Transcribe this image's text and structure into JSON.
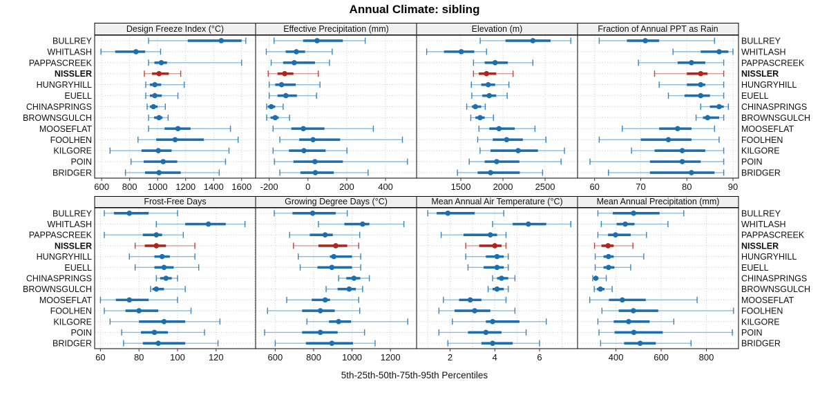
{
  "title": "Annual Climate: sibling",
  "caption": "5th-25th-50th-75th-95th Percentiles",
  "highlight_site": "NISSLER",
  "colors": {
    "blue": "#1b6fae",
    "blue_light": "#8cbcdc",
    "red": "#b2241c",
    "red_light": "#dc9a92",
    "grid": "#c9c9c9",
    "strip_bg": "#f0f0f0",
    "border": "#000000",
    "tick": "#333333"
  },
  "sites": [
    "BULLREY",
    "WHITLASH",
    "PAPPASCREEK",
    "NISSLER",
    "HUNGRYHILL",
    "EUELL",
    "CHINASPRINGS",
    "BROWNSGULCH",
    "MOOSEFLAT",
    "FOOLHEN",
    "KILGORE",
    "POIN",
    "BRIDGER"
  ],
  "percentiles": [
    "5th",
    "25th",
    "50th",
    "75th",
    "95th"
  ],
  "chart_data": [
    {
      "type": "dotplot-percentiles",
      "title": "Design Freeze Index (°C)",
      "xlim": [
        550,
        1700
      ],
      "ticks": [
        600,
        800,
        1000,
        1200,
        1400,
        1600
      ],
      "grid_ticks": [
        600,
        800,
        1000,
        1200,
        1400,
        1600
      ],
      "values": [
        [
          935,
          1215,
          1455,
          1600,
          1630
        ],
        [
          595,
          697,
          845,
          911,
          1021
        ],
        [
          935,
          977,
          1026,
          1067,
          1600
        ],
        [
          905,
          960,
          1010,
          1080,
          1165
        ],
        [
          915,
          945,
          980,
          1025,
          1190
        ],
        [
          915,
          945,
          980,
          1030,
          1145
        ],
        [
          925,
          945,
          970,
          1000,
          1055
        ],
        [
          935,
          975,
          1010,
          1035,
          1075
        ],
        [
          935,
          1050,
          1145,
          1235,
          1520
        ],
        [
          860,
          990,
          1125,
          1330,
          1575
        ],
        [
          660,
          885,
          1005,
          1100,
          1510
        ],
        [
          810,
          900,
          1040,
          1140,
          1485
        ],
        [
          770,
          910,
          1010,
          1165,
          1440
        ]
      ]
    },
    {
      "type": "dotplot-percentiles",
      "title": "Effective Precipitation (mm)",
      "xlim": [
        -270,
        560
      ],
      "ticks": [
        -200,
        0,
        200,
        400
      ],
      "grid_ticks": [
        -200,
        0,
        200,
        400
      ],
      "values": [
        [
          -175,
          -25,
          47,
          180,
          295
        ],
        [
          -215,
          -115,
          -60,
          -15,
          125
        ],
        [
          -190,
          -128,
          -71,
          36,
          111
        ],
        [
          -205,
          -157,
          -120,
          -75,
          53
        ],
        [
          -200,
          -169,
          -136,
          -63,
          62
        ],
        [
          -200,
          -157,
          -114,
          -57,
          44
        ],
        [
          -213,
          -207,
          -189,
          -169,
          -128
        ],
        [
          -213,
          -193,
          -169,
          -151,
          -95
        ],
        [
          -180,
          -86,
          -24,
          85,
          337
        ],
        [
          -145,
          -45,
          26,
          166,
          487
        ],
        [
          -180,
          -98,
          -21,
          91,
          201
        ],
        [
          -173,
          -75,
          36,
          180,
          513
        ],
        [
          -145,
          -39,
          38,
          133,
          310
        ]
      ]
    },
    {
      "type": "dotplot-percentiles",
      "title": "Elevation (m)",
      "xlim": [
        975,
        2885
      ],
      "ticks": [
        1500,
        2000,
        2500
      ],
      "grid_ticks": [
        1000,
        1500,
        2000,
        2500
      ],
      "values": [
        [
          1730,
          2030,
          2355,
          2565,
          2805
        ],
        [
          1095,
          1300,
          1505,
          1660,
          1805
        ],
        [
          1650,
          1783,
          1907,
          2058,
          2355
        ],
        [
          1650,
          1714,
          1805,
          1920,
          2120
        ],
        [
          1625,
          1742,
          1825,
          1907,
          2070
        ],
        [
          1630,
          1755,
          1838,
          1920,
          2050
        ],
        [
          1570,
          1632,
          1673,
          1742,
          1790
        ],
        [
          1618,
          1673,
          1728,
          1783,
          1887
        ],
        [
          1715,
          1838,
          1953,
          2140,
          2380
        ],
        [
          1700,
          1879,
          2044,
          2236,
          2510
        ],
        [
          1728,
          1852,
          2180,
          2415,
          2730
        ],
        [
          1600,
          1783,
          1925,
          2195,
          2690
        ],
        [
          1460,
          1700,
          1852,
          2200,
          2470
        ]
      ]
    },
    {
      "type": "dotplot-percentiles",
      "title": "Fraction of Annual PPT as Rain",
      "xlim": [
        56.3,
        91.2
      ],
      "ticks": [
        60,
        70,
        80,
        90
      ],
      "grid_ticks": [
        60,
        70,
        80,
        90
      ],
      "values": [
        [
          61,
          67,
          71,
          74,
          86
        ],
        [
          77,
          83,
          87,
          89,
          90
        ],
        [
          69.5,
          78,
          81,
          84,
          88
        ],
        [
          73,
          80,
          83,
          84.5,
          88
        ],
        [
          74,
          80,
          83,
          84,
          88
        ],
        [
          76,
          79.5,
          83,
          85,
          88
        ],
        [
          83,
          85,
          87,
          88,
          89
        ],
        [
          82,
          83.5,
          84.5,
          87,
          88
        ],
        [
          66,
          74,
          78,
          81,
          86
        ],
        [
          61,
          70,
          76,
          81,
          87
        ],
        [
          68,
          73,
          79,
          84,
          88
        ],
        [
          59,
          72,
          79,
          83,
          88
        ],
        [
          63,
          72,
          81,
          86,
          88
        ]
      ]
    },
    {
      "type": "dotplot-percentiles",
      "title": "Frost-Free Days",
      "xlim": [
        57,
        140.5
      ],
      "ticks": [
        60,
        80,
        100,
        120
      ],
      "grid_ticks": [
        60,
        80,
        100,
        120,
        140
      ],
      "values": [
        [
          62,
          67,
          75,
          85,
          100
        ],
        [
          89,
          104,
          116,
          125,
          135
        ],
        [
          62,
          82,
          89,
          92,
          103
        ],
        [
          78,
          83,
          89,
          94,
          109
        ],
        [
          75,
          88,
          92,
          96,
          109
        ],
        [
          78,
          88,
          93,
          98,
          111
        ],
        [
          89,
          91,
          94,
          97,
          100
        ],
        [
          86,
          87,
          89,
          93,
          104
        ],
        [
          60,
          68,
          75,
          85,
          100
        ],
        [
          62,
          73,
          80,
          90,
          107
        ],
        [
          65,
          80,
          93,
          104,
          122
        ],
        [
          71,
          81,
          88,
          95,
          114
        ],
        [
          72,
          82,
          90,
          104,
          121
        ]
      ]
    },
    {
      "type": "dotplot-percentiles",
      "title": "Growing Degree Days (°C)",
      "xlim": [
        498,
        1336
      ],
      "ticks": [
        600,
        800,
        1000,
        1200
      ],
      "grid_ticks": [
        600,
        800,
        1000,
        1200
      ],
      "values": [
        [
          595,
          690,
          795,
          915,
          975
        ],
        [
          825,
          960,
          1055,
          1090,
          1270
        ],
        [
          675,
          780,
          860,
          900,
          1040
        ],
        [
          695,
          825,
          915,
          975,
          1035
        ],
        [
          720,
          885,
          905,
          1000,
          1045
        ],
        [
          730,
          820,
          895,
          1000,
          1045
        ],
        [
          930,
          970,
          1010,
          1043,
          1090
        ],
        [
          865,
          925,
          985,
          1020,
          1055
        ],
        [
          660,
          790,
          860,
          885,
          1035
        ],
        [
          560,
          740,
          835,
          910,
          1040
        ],
        [
          765,
          880,
          930,
          995,
          1290
        ],
        [
          545,
          740,
          835,
          925,
          1065
        ],
        [
          600,
          760,
          895,
          1005,
          1120
        ]
      ]
    },
    {
      "type": "dotplot-percentiles",
      "title": "Mean Annual Air Temperature (°C)",
      "xlim": [
        0.5,
        7.7
      ],
      "ticks": [
        2,
        4,
        6
      ],
      "grid_ticks": [
        1,
        2,
        3,
        4,
        5,
        6,
        7
      ],
      "values": [
        [
          1.0,
          1.4,
          1.9,
          3.1,
          4.4
        ],
        [
          3.9,
          4.8,
          5.5,
          6.3,
          7.4
        ],
        [
          1.6,
          2.6,
          3.8,
          4.1,
          4.5
        ],
        [
          2.7,
          3.3,
          4.0,
          4.3,
          4.5
        ],
        [
          2.7,
          3.6,
          4.1,
          4.4,
          4.6
        ],
        [
          2.8,
          3.5,
          4.1,
          4.4,
          4.6
        ],
        [
          3.9,
          4.1,
          4.3,
          4.6,
          4.9
        ],
        [
          3.7,
          3.9,
          4.1,
          4.4,
          4.6
        ],
        [
          1.7,
          2.4,
          2.9,
          3.4,
          4.5
        ],
        [
          1.5,
          2.2,
          3.1,
          3.8,
          4.9
        ],
        [
          2.1,
          3.6,
          3.9,
          5.1,
          6.3
        ],
        [
          1.5,
          2.8,
          3.6,
          4.3,
          5.4
        ],
        [
          1.9,
          3.4,
          3.9,
          4.8,
          6.0
        ]
      ]
    },
    {
      "type": "dotplot-percentiles",
      "title": "Mean Annual Precipitation (mm)",
      "xlim": [
        230,
        942
      ],
      "ticks": [
        400,
        600,
        800
      ],
      "grid_ticks": [
        400,
        600,
        800
      ],
      "values": [
        [
          320,
          386,
          478,
          593,
          700
        ],
        [
          335,
          403,
          441,
          482,
          630
        ],
        [
          320,
          365,
          398,
          465,
          535
        ],
        [
          305,
          336,
          365,
          390,
          475
        ],
        [
          308,
          345,
          367,
          390,
          523
        ],
        [
          308,
          345,
          367,
          393,
          465
        ],
        [
          297,
          303,
          311,
          322,
          357
        ],
        [
          304,
          316,
          331,
          349,
          383
        ],
        [
          284,
          369,
          428,
          532,
          759
        ],
        [
          338,
          412,
          477,
          587,
          920
        ],
        [
          320,
          390,
          456,
          549,
          656
        ],
        [
          325,
          394,
          479,
          607,
          915
        ],
        [
          332,
          436,
          507,
          576,
          732
        ]
      ]
    }
  ]
}
